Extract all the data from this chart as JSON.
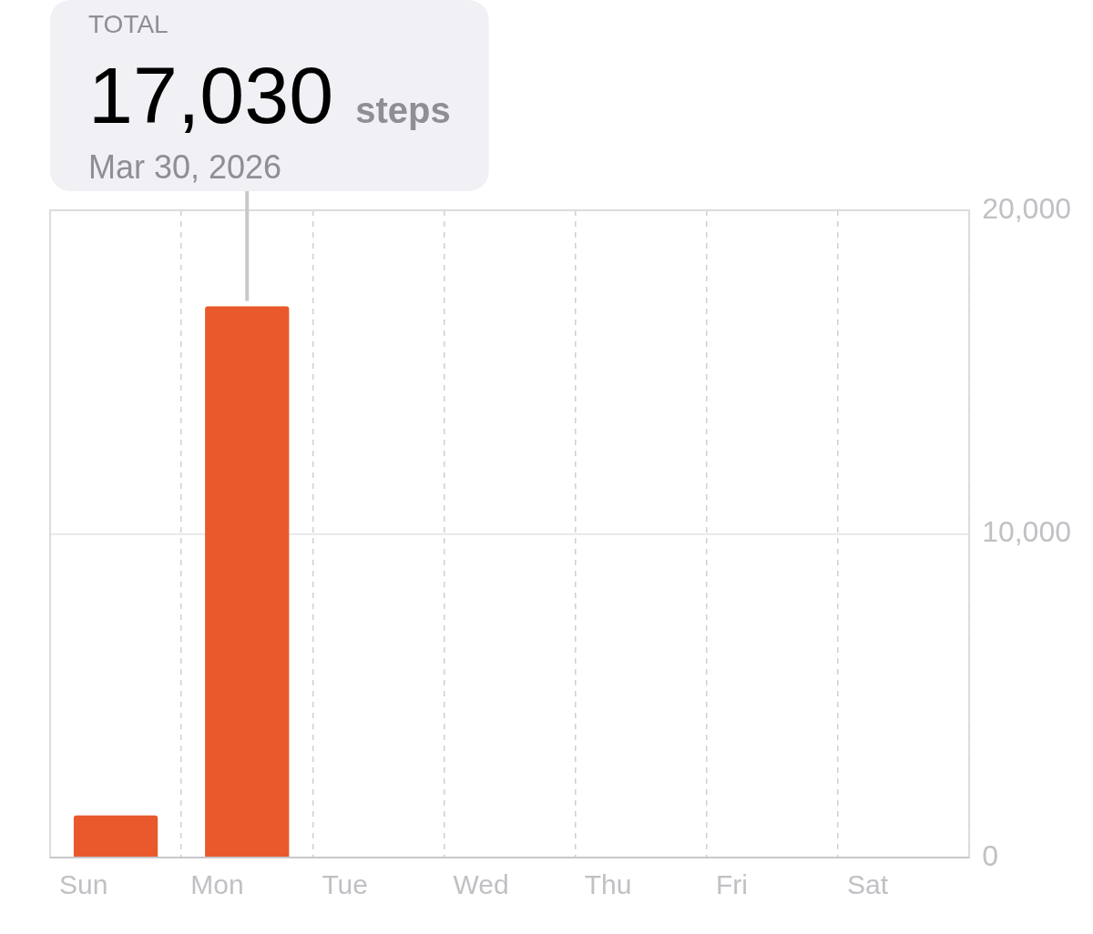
{
  "chart_data": {
    "type": "bar",
    "categories": [
      "Sun",
      "Mon",
      "Tue",
      "Wed",
      "Thu",
      "Fri",
      "Sat"
    ],
    "values": [
      1300,
      17030,
      null,
      null,
      null,
      null,
      null
    ],
    "color": "#e9592b",
    "ylim": [
      0,
      20000
    ],
    "yticks": [
      0,
      {
        "value": 10000,
        "label": "10,000"
      },
      {
        "value": 20000,
        "label": "20,000"
      }
    ],
    "grid": true,
    "legend": false,
    "annotations": [
      "TOTAL",
      "17,030",
      "steps",
      "Mar 30, 2026"
    ]
  }
}
